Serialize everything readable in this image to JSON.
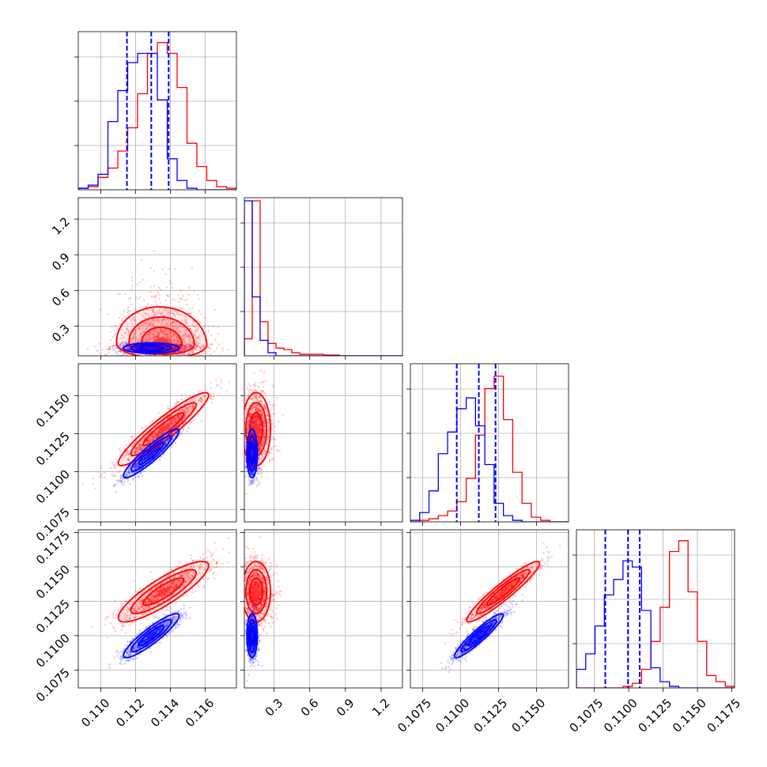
{
  "chart_data": {
    "type": "corner",
    "colors": {
      "series_a": "#ff0000",
      "series_b": "#0000ff"
    },
    "series": [
      {
        "color": "#0000ff",
        "stats": {
          "p1": {
            "q16": 0.1115,
            "q50": 0.1129,
            "q84": 0.1139
          },
          "p3": {
            "q16": 0.10975,
            "q50": 0.1112,
            "q84": 0.1123
          },
          "p4": {
            "q16": 0.1083,
            "q50": 0.10995,
            "q84": 0.1108
          }
        },
        "hist_p1": [
          0.01,
          0.03,
          0.1,
          0.44,
          0.64,
          0.82,
          0.88,
          0.88,
          0.58,
          0.2,
          0.06,
          0.01,
          0,
          0,
          0,
          0
        ],
        "hist_p2": [
          1.0,
          0.38,
          0.1,
          0.02,
          0,
          0,
          0,
          0,
          0,
          0,
          0,
          0,
          0,
          0,
          0,
          0,
          0,
          0,
          0,
          0
        ],
        "hist_p3": [
          0.01,
          0.06,
          0.2,
          0.44,
          0.58,
          0.73,
          0.8,
          0.62,
          0.37,
          0.12,
          0.04,
          0.01,
          0,
          0,
          0,
          0,
          0
        ],
        "hist_p4": [
          0.12,
          0.22,
          0.4,
          0.6,
          0.7,
          0.82,
          0.78,
          0.5,
          0.13,
          0.04,
          0.01,
          0,
          0,
          0,
          0,
          0,
          0
        ]
      },
      {
        "color": "#ff0000",
        "stats": {},
        "hist_p1": [
          0.01,
          0.02,
          0.08,
          0.14,
          0.25,
          0.4,
          0.62,
          0.88,
          0.95,
          0.88,
          0.66,
          0.3,
          0.15,
          0.06,
          0.02,
          0.01
        ],
        "hist_p2": [
          0.11,
          1.0,
          0.22,
          0.08,
          0.05,
          0.04,
          0.02,
          0.01,
          0.01,
          0.01,
          0.005,
          0.005,
          0,
          0,
          0,
          0,
          0,
          0,
          0,
          0
        ],
        "hist_p3": [
          0,
          0.01,
          0.02,
          0.04,
          0.07,
          0.13,
          0.28,
          0.56,
          0.86,
          0.94,
          0.66,
          0.32,
          0.12,
          0.03,
          0.01,
          0,
          0
        ],
        "hist_p4": [
          0,
          0,
          0,
          0,
          0,
          0.01,
          0.03,
          0.12,
          0.3,
          0.52,
          0.88,
          0.95,
          0.62,
          0.3,
          0.08,
          0.04,
          0.01
        ]
      }
    ],
    "params": [
      {
        "range": [
          0.1087,
          0.1178
        ],
        "ticks": [
          0.11,
          0.112,
          0.114,
          0.116
        ],
        "labels": [
          "0.110",
          "0.112",
          "0.114",
          "0.116"
        ]
      },
      {
        "range": [
          0.05,
          1.38
        ],
        "ticks": [
          0.3,
          0.6,
          0.9,
          1.2
        ],
        "labels": [
          "0.3",
          "0.6",
          "0.9",
          "1.2"
        ]
      },
      {
        "range": [
          0.1067,
          0.1171
        ],
        "ticks": [
          0.1075,
          0.11,
          0.1125,
          0.115
        ],
        "labels": [
          "0.1075",
          "0.1100",
          "0.1125",
          "0.1150"
        ]
      },
      {
        "range": [
          0.1062,
          0.1177
        ],
        "ticks": [
          0.1075,
          0.11,
          0.1125,
          0.115,
          0.1175
        ],
        "labels": [
          "0.1075",
          "0.1100",
          "0.1125",
          "0.1150",
          "0.1175"
        ]
      }
    ],
    "grid": true,
    "legend": "none",
    "title": "",
    "xlabel": "",
    "ylabel": ""
  }
}
